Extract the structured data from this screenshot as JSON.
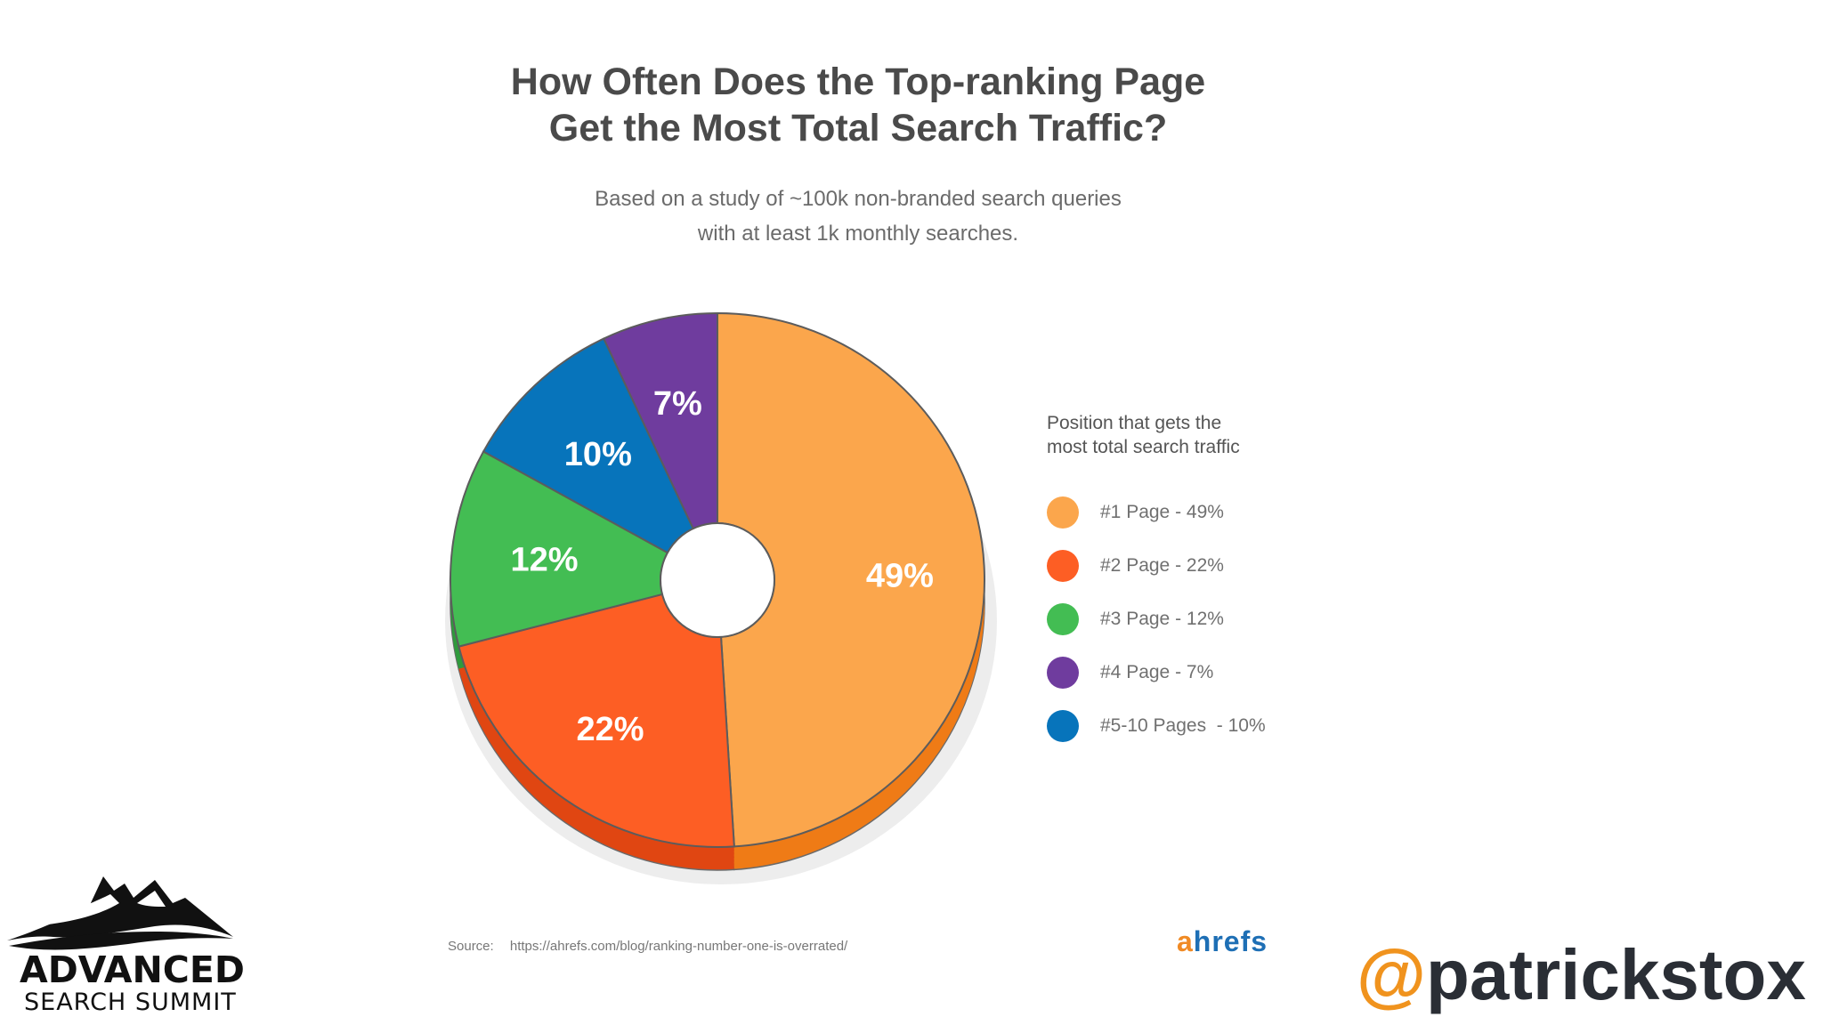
{
  "chart_data": {
    "type": "pie",
    "title_lines": [
      "How Often Does the Top-ranking Page",
      "Get the Most Total Search Traffic?"
    ],
    "subtitle_lines": [
      "Based on a study of ~100k non-branded search queries",
      "with at least 1k monthly searches."
    ],
    "legend_title_lines": [
      "Position that gets the",
      "most total search traffic"
    ],
    "legend_position": "right",
    "slices": [
      {
        "name": "#1 Page",
        "value": 49,
        "label": "49%",
        "legend": "#1 Page - 49%",
        "color": "#fba64c",
        "side": "#ef7b16"
      },
      {
        "name": "#2 Page",
        "value": 22,
        "label": "22%",
        "legend": "#2 Page - 22%",
        "color": "#fd5e24",
        "side": "#e04612"
      },
      {
        "name": "#3 Page",
        "value": 12,
        "label": "12%",
        "legend": "#3 Page - 12%",
        "color": "#43bd53",
        "side": "#2f9a3c"
      },
      {
        "name": "#5-10 Pages",
        "value": 10,
        "label": "10%",
        "legend": "#5-10 Pages  - 10%",
        "color": "#0774bb",
        "side": "#055a92"
      },
      {
        "name": "#4 Page",
        "value": 7,
        "label": "7%",
        "legend": "#4 Page - 7%",
        "color": "#6f3c9e",
        "side": "#56297f"
      }
    ],
    "legend_order": [
      "#1 Page",
      "#2 Page",
      "#3 Page",
      "#4 Page",
      "#5-10 Pages"
    ]
  },
  "footer": {
    "source_label": "Source:",
    "source_url": "https://ahrefs.com/blog/ranking-number-one-is-overrated/",
    "brand_a": "a",
    "brand_rest": "hrefs"
  },
  "logo": {
    "title": "ADVANCED",
    "subtitle": "SEARCH SUMMIT"
  },
  "handle": {
    "at": "@",
    "name": "patrickstox"
  }
}
